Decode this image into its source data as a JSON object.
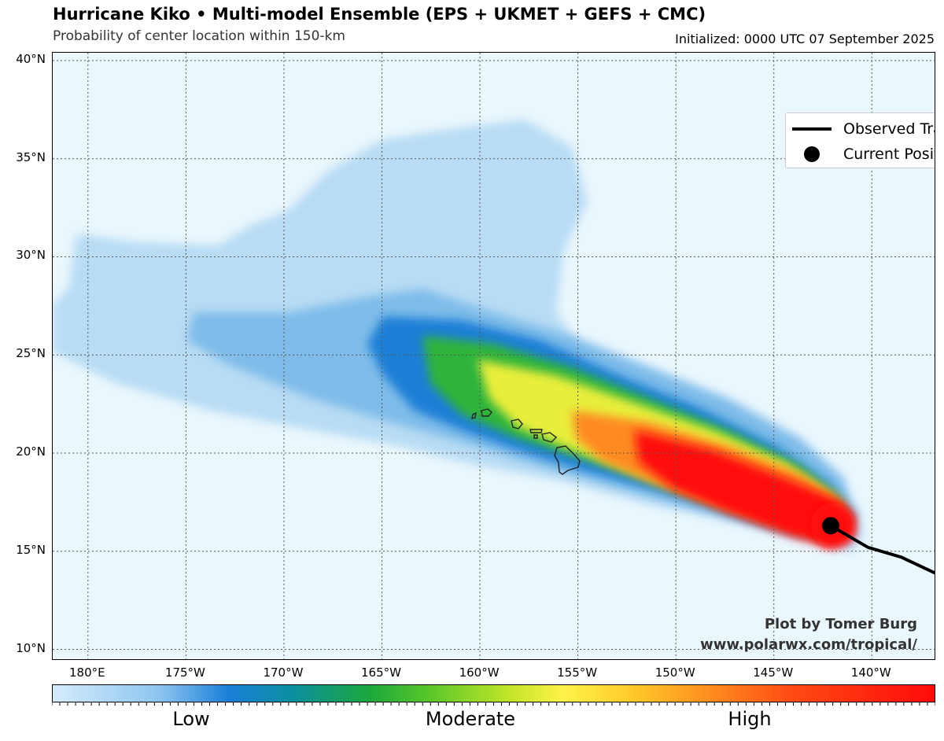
{
  "header": {
    "title": "Hurricane Kiko • Multi-model Ensemble (EPS + UKMET + GEFS + CMC)",
    "subtitle": "Probability of center location within 150-km",
    "initialized": "Initialized: 0000 UTC 07 September 2025"
  },
  "map": {
    "lat_ticks": [
      "40°N",
      "35°N",
      "30°N",
      "25°N",
      "20°N",
      "15°N",
      "10°N"
    ],
    "lon_ticks": [
      "180°E",
      "175°W",
      "170°W",
      "165°W",
      "160°W",
      "155°W",
      "150°W",
      "145°W",
      "140°W"
    ],
    "lat_values": [
      40,
      35,
      30,
      25,
      20,
      15,
      10
    ],
    "lon_values": [
      180,
      -175,
      -170,
      -165,
      -160,
      -155,
      -150,
      -145,
      -140
    ],
    "lat_range": [
      9.5,
      40.4
    ],
    "lon_range": [
      178.2,
      -136.8
    ],
    "grid": true,
    "observed_track": [
      [
        -142.1,
        16.3
      ],
      [
        -140.2,
        15.2
      ],
      [
        -138.5,
        14.7
      ],
      [
        -136.8,
        13.9
      ]
    ],
    "current_position": [
      -142.1,
      16.3
    ],
    "colors": {
      "ocean": "#eaf7fd",
      "low": "#a9d4f2",
      "moderate": "#8ad12a",
      "high": "#ff0a0a"
    }
  },
  "legend": {
    "observed_track": "Observed Track",
    "current_position": "Current Position"
  },
  "credits": {
    "line1": "Plot by Tomer Burg",
    "line2": "www.polarwx.com/tropical/"
  },
  "colorbar": {
    "low": "Low",
    "moderate": "Moderate",
    "high": "High"
  }
}
